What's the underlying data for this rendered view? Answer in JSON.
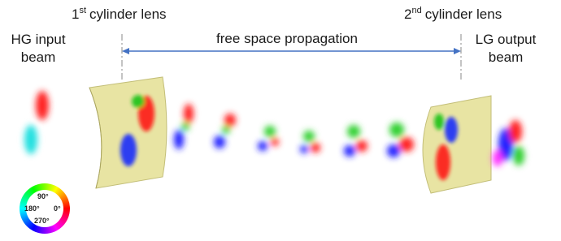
{
  "labels": {
    "first_lens": {
      "number": "1",
      "suffix": "st",
      "text": "cylinder lens"
    },
    "second_lens": {
      "number": "2",
      "suffix": "nd",
      "text": "cylinder lens"
    },
    "input": {
      "line1": "HG input",
      "line2": "beam"
    },
    "propagation": "free space propagation",
    "output": {
      "line1": "LG output",
      "line2": "beam"
    }
  },
  "color_wheel": {
    "top": "90°",
    "left": "180°",
    "right": "0°",
    "bottom": "270°"
  }
}
